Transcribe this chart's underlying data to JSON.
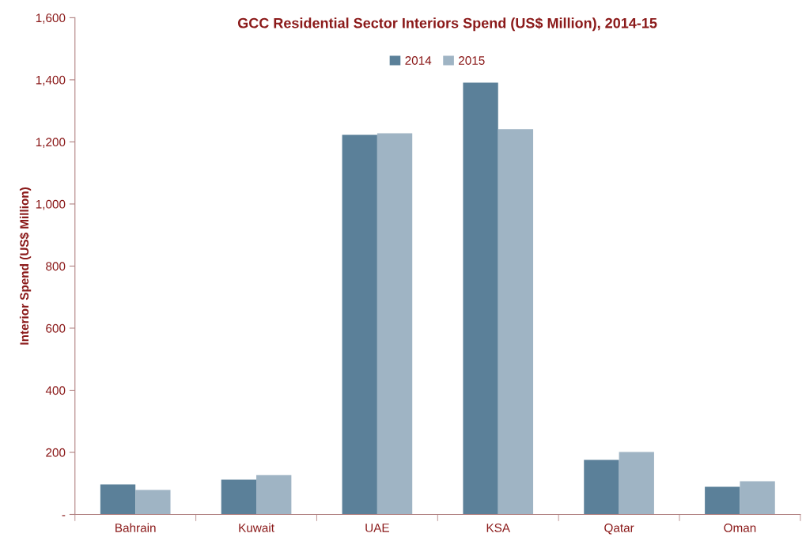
{
  "chart_data": {
    "type": "bar",
    "title": "GCC Residential Sector Interiors Spend (US$ Million), 2014-15",
    "ylabel": "Interior Spend (US$ Million)",
    "categories": [
      "Bahrain",
      "Kuwait",
      "UAE",
      "KSA",
      "Qatar",
      "Oman"
    ],
    "series": [
      {
        "name": "2014",
        "color": "#5b8099",
        "values": [
          97,
          112,
          1223,
          1391,
          176,
          89
        ]
      },
      {
        "name": "2015",
        "color": "#9fb4c4",
        "values": [
          79,
          127,
          1228,
          1241,
          201,
          107
        ]
      }
    ],
    "ylim": [
      0,
      1600
    ],
    "yticks": [
      {
        "value": 0,
        "label": "-"
      },
      200,
      400,
      600,
      800,
      {
        "value": 1000,
        "label": "1,000"
      },
      {
        "value": 1200,
        "label": "1,200"
      },
      {
        "value": 1400,
        "label": "1,400"
      },
      {
        "value": 1600,
        "label": "1,600"
      }
    ],
    "grid": false,
    "legend": "top"
  }
}
